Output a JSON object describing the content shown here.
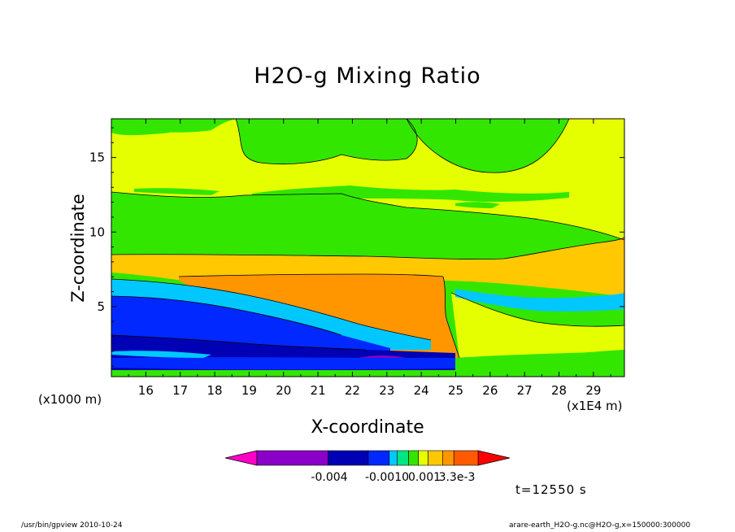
{
  "title": "H2O-g Mixing Ratio",
  "footer": {
    "left": "/usr/bin/gpview   2010-10-24",
    "right": "arare-earth_H2O-g.nc@H2O-g,x=150000:300000"
  },
  "time_label": "t=12550 s",
  "chart_data": {
    "type": "heatmap",
    "title": "H2O-g Mixing Ratio",
    "xlabel": "X-coordinate",
    "ylabel": "Z-coordinate",
    "x_unit_label": "(x1E4 m)",
    "z_unit_label": "(x1000 m)",
    "xlim": [
      15.0,
      29.9
    ],
    "ylim": [
      0.3,
      17.6
    ],
    "x_ticks": [
      16,
      17,
      18,
      19,
      20,
      21,
      22,
      23,
      24,
      25,
      26,
      27,
      28,
      29
    ],
    "y_ticks": [
      5,
      10,
      15
    ],
    "grid": false,
    "colorbar": {
      "tick_labels": [
        "-0.004",
        "-0.0010",
        "0.001",
        "3.3e-3"
      ],
      "colors": [
        "#ff00c8",
        "#8a00c8",
        "#0000b4",
        "#0028ff",
        "#00c8ff",
        "#00e682",
        "#32e600",
        "#e6ff00",
        "#ffc800",
        "#ff9600",
        "#ff5a00",
        "#ff0000"
      ]
    },
    "bands": [
      {
        "name": "surface-purple",
        "color": "#8a00c8"
      },
      {
        "name": "lower-navy",
        "color": "#0000b4"
      },
      {
        "name": "blue",
        "color": "#0028ff"
      },
      {
        "name": "cyan",
        "color": "#00c8ff"
      },
      {
        "name": "green",
        "color": "#32e600"
      },
      {
        "name": "yellow",
        "color": "#e6ff00"
      },
      {
        "name": "light-orange",
        "color": "#ffc800"
      },
      {
        "name": "orange",
        "color": "#ff9600"
      }
    ]
  }
}
